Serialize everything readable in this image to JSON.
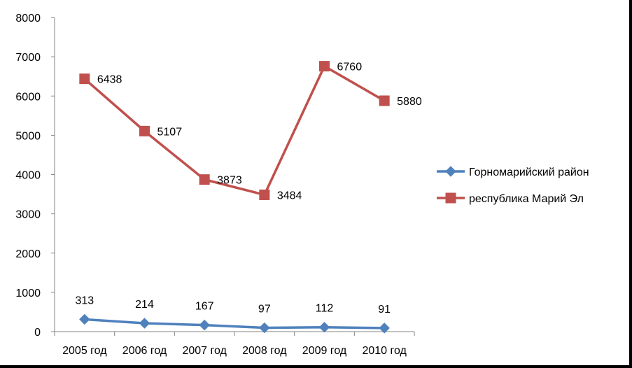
{
  "chart_data": {
    "type": "line",
    "title": "",
    "xlabel": "",
    "ylabel": "",
    "categories": [
      "2005 год",
      "2006 год",
      "2007 год",
      "2008 год",
      "2009 год",
      "2010 год"
    ],
    "ylim": [
      0,
      8000
    ],
    "yticks": [
      "0",
      "1000",
      "2000",
      "3000",
      "4000",
      "5000",
      "6000",
      "7000",
      "8000"
    ],
    "grid": false,
    "legend_position": "right",
    "series": [
      {
        "name": "Горномарийский район",
        "values": [
          313,
          214,
          167,
          97,
          112,
          91
        ],
        "labels": [
          "313",
          "214",
          "167",
          "97",
          "112",
          "91"
        ],
        "color": "#4f81bd",
        "marker": "diamond"
      },
      {
        "name": "республика Марий Эл",
        "values": [
          6438,
          5107,
          3873,
          3484,
          6760,
          5880
        ],
        "labels": [
          "6438",
          "5107",
          "3873",
          "3484",
          "6760",
          "5880"
        ],
        "color": "#c0504d",
        "marker": "square"
      }
    ]
  }
}
